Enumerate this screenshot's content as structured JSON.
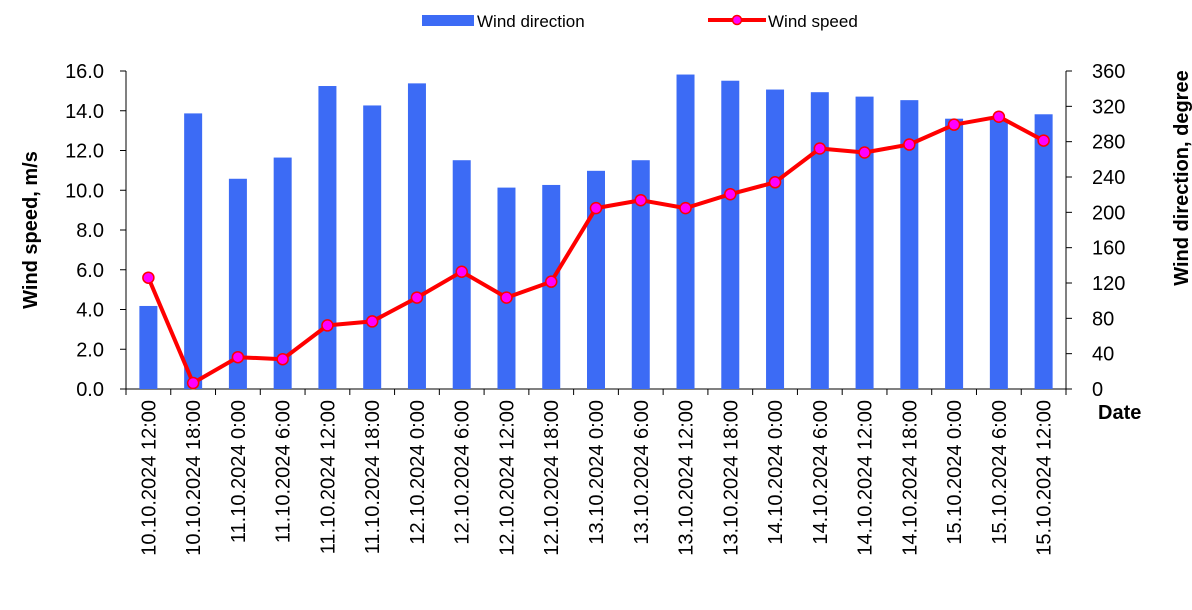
{
  "chart_data": {
    "type": "bar+line",
    "categories": [
      "10.10.2024 12:00",
      "10.10.2024 18:00",
      "11.10.2024 0:00",
      "11.10.2024 6:00",
      "11.10.2024 12:00",
      "11.10.2024 18:00",
      "12.10.2024 0:00",
      "12.10.2024 6:00",
      "12.10.2024 12:00",
      "12.10.2024 18:00",
      "13.10.2024 0:00",
      "13.10.2024 6:00",
      "13.10.2024 12:00",
      "13.10.2024 18:00",
      "14.10.2024 0:00",
      "14.10.2024 6:00",
      "14.10.2024 12:00",
      "14.10.2024 18:00",
      "15.10.2024 0:00",
      "15.10.2024 6:00",
      "15.10.2024 12:00"
    ],
    "series": [
      {
        "name": "Wind direction",
        "type": "bar",
        "axis": "right",
        "values": [
          94,
          312,
          238,
          262,
          343,
          321,
          346,
          259,
          228,
          231,
          247,
          259,
          356,
          349,
          339,
          336,
          331,
          327,
          306,
          305,
          311
        ]
      },
      {
        "name": "Wind speed",
        "type": "line",
        "axis": "left",
        "values": [
          5.6,
          0.3,
          1.6,
          1.5,
          3.2,
          3.4,
          4.6,
          5.9,
          4.6,
          5.4,
          9.1,
          9.5,
          9.1,
          9.8,
          10.4,
          12.1,
          11.9,
          12.3,
          13.3,
          13.7,
          12.5
        ]
      }
    ],
    "ylabel": "Wind speed, m/s",
    "y2label": "Wind direction, degree",
    "xlabel": "Date",
    "ylim": [
      0,
      16
    ],
    "y2lim": [
      0,
      360
    ],
    "yticks": [
      "0.0",
      "2.0",
      "4.0",
      "6.0",
      "8.0",
      "10.0",
      "12.0",
      "14.0",
      "16.0"
    ],
    "y2ticks": [
      "0",
      "40",
      "80",
      "120",
      "160",
      "200",
      "240",
      "280",
      "320",
      "360"
    ],
    "legend_position": "top",
    "grid": false,
    "colors": {
      "bar": "#3c6bf5",
      "line": "#ff0000",
      "marker_fill": "#ff00ff"
    }
  }
}
